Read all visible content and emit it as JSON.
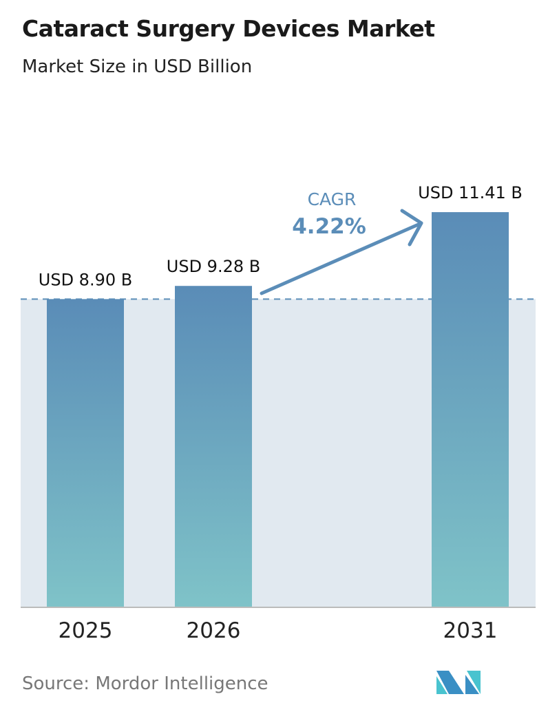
{
  "title": "Cataract Surgery Devices Market",
  "subtitle": "Market Size in USD Billion",
  "source": "Source:  Mordor Intelligence",
  "logo": "Mordor Intelligence logo (MI)",
  "colors": {
    "bar_top": "#5a8cb7",
    "bar_bottom": "#7fc3c8",
    "band": "#e1e9f0",
    "accent": "#5b8db8"
  },
  "chart_data": {
    "type": "bar",
    "categories": [
      "2025",
      "2026",
      "2031"
    ],
    "values": [
      8.9,
      9.28,
      11.41
    ],
    "data_labels": [
      "USD 8.90 B",
      "USD 9.28 B",
      "USD 11.41 B"
    ],
    "annotation": {
      "label": "CAGR",
      "value": "4.22%"
    },
    "grid": false,
    "reference_line": 8.9
  }
}
